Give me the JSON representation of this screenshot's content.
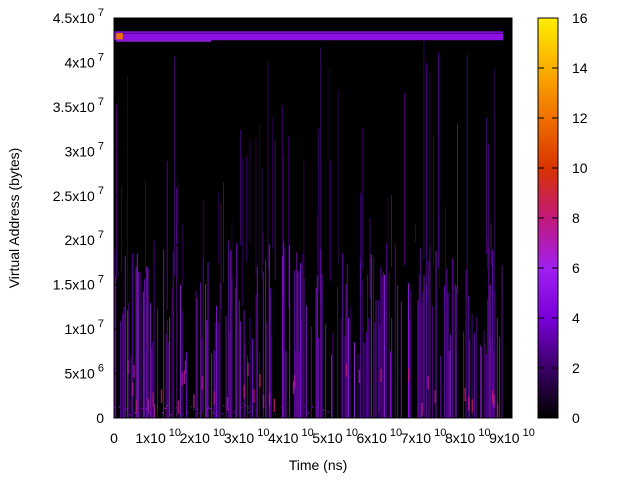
{
  "chart_data": {
    "type": "heatmap",
    "title": "",
    "xlabel": "Time (ns)",
    "ylabel": "Virtual Address (bytes)",
    "x_range": [
      0,
      90000000000
    ],
    "y_range": [
      0,
      45000000
    ],
    "x_ticks": [
      {
        "value": 0,
        "mantissa": "0",
        "exp": ""
      },
      {
        "value": 10000000000,
        "mantissa": "1x10",
        "exp": "10"
      },
      {
        "value": 20000000000,
        "mantissa": "2x10",
        "exp": "10"
      },
      {
        "value": 30000000000,
        "mantissa": "3x10",
        "exp": "10"
      },
      {
        "value": 40000000000,
        "mantissa": "4x10",
        "exp": "10"
      },
      {
        "value": 50000000000,
        "mantissa": "5x10",
        "exp": "10"
      },
      {
        "value": 60000000000,
        "mantissa": "6x10",
        "exp": "10"
      },
      {
        "value": 70000000000,
        "mantissa": "7x10",
        "exp": "10"
      },
      {
        "value": 80000000000,
        "mantissa": "8x10",
        "exp": "10"
      },
      {
        "value": 90000000000,
        "mantissa": "9x10",
        "exp": "10"
      }
    ],
    "y_ticks": [
      {
        "value": 0,
        "mantissa": "0",
        "exp": ""
      },
      {
        "value": 5000000,
        "mantissa": "5x10",
        "exp": "6"
      },
      {
        "value": 10000000,
        "mantissa": "1x10",
        "exp": "7"
      },
      {
        "value": 15000000,
        "mantissa": "1.5x10",
        "exp": "7"
      },
      {
        "value": 20000000,
        "mantissa": "2x10",
        "exp": "7"
      },
      {
        "value": 25000000,
        "mantissa": "2.5x10",
        "exp": "7"
      },
      {
        "value": 30000000,
        "mantissa": "3x10",
        "exp": "7"
      },
      {
        "value": 35000000,
        "mantissa": "3.5x10",
        "exp": "7"
      },
      {
        "value": 40000000,
        "mantissa": "4x10",
        "exp": "7"
      },
      {
        "value": 45000000,
        "mantissa": "4.5x10",
        "exp": "7"
      }
    ],
    "colorbar": {
      "range": [
        0,
        16
      ],
      "ticks": [
        "0",
        "2",
        "4",
        "6",
        "8",
        "10",
        "12",
        "14",
        "16"
      ],
      "palette": [
        "#000000",
        "#3a0066",
        "#7a00d9",
        "#a020f0",
        "#c2187a",
        "#d83400",
        "#f07000",
        "#fab000",
        "#ffee00"
      ]
    },
    "background_color": "#000000",
    "regions": [
      {
        "label": "dense low-address region",
        "y_range": [
          0,
          20000000
        ],
        "x_range": [
          0,
          88000000000
        ],
        "intensity": 5
      },
      {
        "label": "top stack band",
        "y_range": [
          42500000,
          43500000
        ],
        "x_range": [
          0,
          88000000000
        ],
        "intensity": 5
      },
      {
        "label": "initial hot spot",
        "y_range": [
          42600000,
          43300000
        ],
        "x_range": [
          500000000,
          2000000000
        ],
        "intensity": 12
      }
    ]
  }
}
